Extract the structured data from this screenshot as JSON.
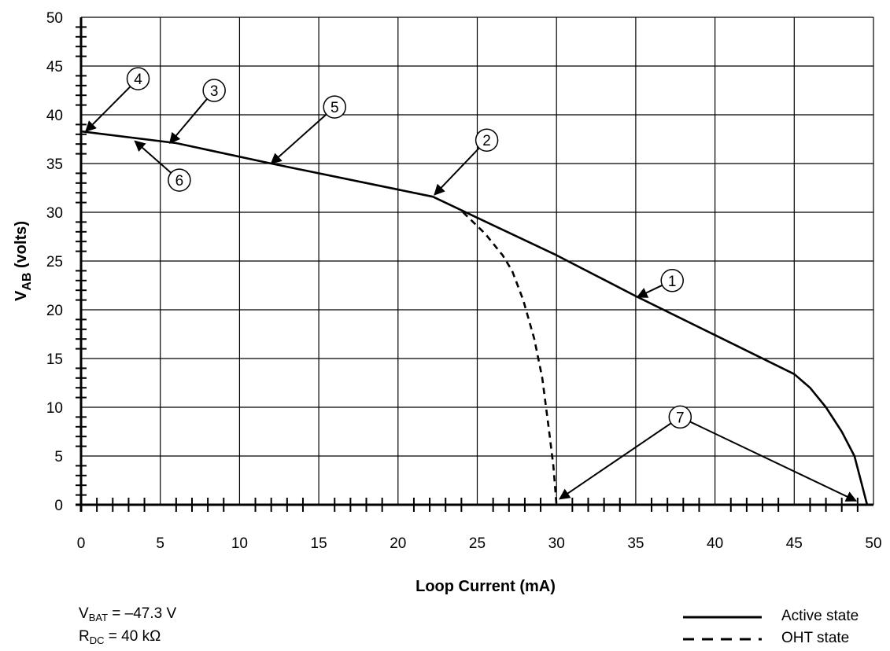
{
  "chart_data": {
    "type": "line",
    "xlabel": "Loop Current (mA)",
    "ylabel_main": "V",
    "ylabel_sub": "AB",
    "ylabel_rest": " (volts)",
    "xlim": [
      0,
      50
    ],
    "ylim": [
      0,
      50
    ],
    "x_ticks": [
      "0",
      "5",
      "10",
      "15",
      "20",
      "25",
      "30",
      "35",
      "40",
      "45",
      "50"
    ],
    "y_ticks": [
      "0",
      "5",
      "10",
      "15",
      "20",
      "25",
      "30",
      "35",
      "40",
      "45",
      "50"
    ],
    "grid": true,
    "series": [
      {
        "name": "Active state",
        "style": "solid",
        "points": [
          [
            0,
            38.3
          ],
          [
            6,
            37.1
          ],
          [
            12,
            35
          ],
          [
            22.2,
            31.6
          ],
          [
            30,
            25.6
          ],
          [
            35,
            21.4
          ],
          [
            40,
            17.4
          ],
          [
            45,
            13.4
          ],
          [
            46,
            12
          ],
          [
            47,
            10
          ],
          [
            48,
            7.5
          ],
          [
            48.8,
            5
          ],
          [
            49.2,
            2.5
          ],
          [
            49.6,
            0
          ]
        ]
      },
      {
        "name": "OHT state",
        "style": "dashed",
        "points": [
          [
            24.1,
            30
          ],
          [
            25.5,
            27.8
          ],
          [
            26.6,
            25.6
          ],
          [
            27.2,
            24
          ],
          [
            27.9,
            21
          ],
          [
            28.6,
            17
          ],
          [
            29.1,
            13
          ],
          [
            29.5,
            8
          ],
          [
            29.8,
            4
          ],
          [
            30,
            0
          ]
        ]
      }
    ],
    "annotations": [
      {
        "label": "1",
        "circle": [
          37.3,
          23
        ],
        "target": [
          35.1,
          21.3
        ]
      },
      {
        "label": "2",
        "circle": [
          25.6,
          37.4
        ],
        "target": [
          22.3,
          31.8
        ]
      },
      {
        "label": "3",
        "circle": [
          8.4,
          42.5
        ],
        "target": [
          5.6,
          37.1
        ]
      },
      {
        "label": "4",
        "circle": [
          3.6,
          43.7
        ],
        "target": [
          0.3,
          38.3
        ]
      },
      {
        "label": "5",
        "circle": [
          16,
          40.8
        ],
        "target": [
          12,
          35
        ]
      },
      {
        "label": "6",
        "circle": [
          6.2,
          33.3
        ],
        "target": [
          3.4,
          37.3
        ]
      },
      {
        "label": "7",
        "circle": [
          37.8,
          9
        ],
        "targets": [
          [
            30.2,
            0.6
          ],
          [
            48.9,
            0.4
          ]
        ]
      }
    ]
  },
  "notes": {
    "vbat_prefix": "V",
    "vbat_sub": "BAT",
    "vbat_value": " = –47.3 V",
    "rdc_prefix": "R",
    "rdc_sub": "DC",
    "rdc_value": " = 40 kΩ"
  },
  "legend": {
    "active": "Active state",
    "oht": "OHT state"
  }
}
